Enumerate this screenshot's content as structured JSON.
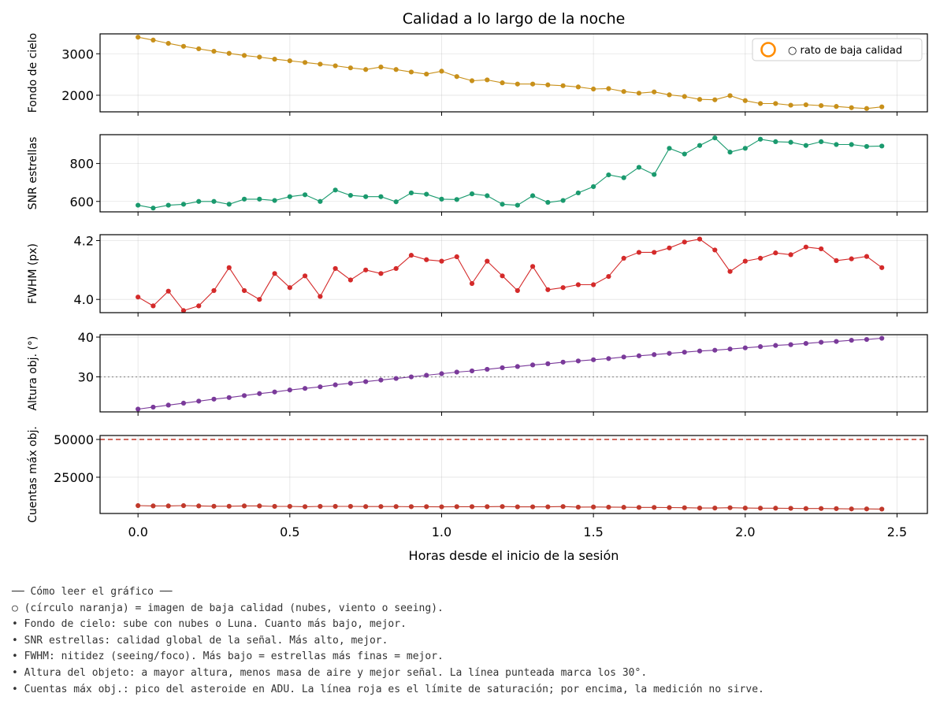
{
  "chart_data": {
    "type": "line",
    "title": "Calidad a lo largo de la noche",
    "xlabel": "Horas desde el inicio de la sesión",
    "x": [
      0.0,
      0.05,
      0.1,
      0.15,
      0.2,
      0.25,
      0.3,
      0.35,
      0.4,
      0.45,
      0.5,
      0.55,
      0.6,
      0.65,
      0.7,
      0.75,
      0.8,
      0.85,
      0.9,
      0.95,
      1.0,
      1.05,
      1.1,
      1.15,
      1.2,
      1.25,
      1.3,
      1.35,
      1.4,
      1.45,
      1.5,
      1.55,
      1.6,
      1.65,
      1.7,
      1.75,
      1.8,
      1.85,
      1.9,
      1.95,
      2.0,
      2.05,
      2.1,
      2.15,
      2.2,
      2.25,
      2.3,
      2.35,
      2.4,
      2.45
    ],
    "xlim": [
      -0.125,
      2.6
    ],
    "xticks": [
      "0.0",
      "0.5",
      "1.0",
      "1.5",
      "2.0",
      "2.5"
    ],
    "xtick_values": [
      0.0,
      0.5,
      1.0,
      1.5,
      2.0,
      2.5
    ],
    "legend": {
      "placement": "upper-right",
      "label": "○ rato de baja calidad",
      "marker_color": "#ff8c00"
    },
    "panels": [
      {
        "ylabel": "Fondo de cielo",
        "color": "#c8901a",
        "ylim": [
          1600,
          3480
        ],
        "yticks": [
          "2000",
          "3000"
        ],
        "ytick_values": [
          2000,
          3000
        ],
        "values": [
          3400,
          3330,
          3250,
          3180,
          3120,
          3060,
          3010,
          2960,
          2920,
          2870,
          2830,
          2790,
          2750,
          2710,
          2660,
          2620,
          2680,
          2620,
          2560,
          2510,
          2580,
          2450,
          2350,
          2370,
          2300,
          2270,
          2270,
          2250,
          2230,
          2200,
          2150,
          2160,
          2090,
          2050,
          2080,
          2010,
          1970,
          1900,
          1890,
          1990,
          1870,
          1800,
          1800,
          1760,
          1770,
          1750,
          1730,
          1700,
          1680,
          1720
        ]
      },
      {
        "ylabel": "SNR estrellas",
        "color": "#1a9a6e",
        "ylim": [
          545,
          952
        ],
        "yticks": [
          "600",
          "800"
        ],
        "ytick_values": [
          600,
          800
        ],
        "values": [
          580,
          565,
          580,
          585,
          600,
          600,
          585,
          612,
          612,
          605,
          625,
          635,
          600,
          660,
          632,
          625,
          625,
          598,
          645,
          638,
          612,
          610,
          640,
          630,
          585,
          580,
          630,
          595,
          605,
          645,
          678,
          740,
          725,
          780,
          742,
          880,
          850,
          895,
          935,
          860,
          880,
          928,
          915,
          912,
          895,
          915,
          900,
          900,
          890,
          892
        ]
      },
      {
        "ylabel": "FWHM (px)",
        "color": "#d42a2a",
        "ylim": [
          3.955,
          4.22
        ],
        "yticks": [
          "4.0",
          "4.2"
        ],
        "ytick_values": [
          4.0,
          4.2
        ],
        "values": [
          4.008,
          3.978,
          4.028,
          3.962,
          3.978,
          4.03,
          4.108,
          4.03,
          4.0,
          4.088,
          4.04,
          4.08,
          4.01,
          4.105,
          4.066,
          4.1,
          4.088,
          4.105,
          4.15,
          4.135,
          4.13,
          4.145,
          4.054,
          4.13,
          4.08,
          4.03,
          4.112,
          4.033,
          4.04,
          4.05,
          4.05,
          4.078,
          4.14,
          4.16,
          4.16,
          4.175,
          4.195,
          4.205,
          4.168,
          4.095,
          4.13,
          4.14,
          4.158,
          4.152,
          4.178,
          4.172,
          4.132,
          4.138,
          4.146,
          4.108
        ]
      },
      {
        "ylabel": "Altura obj. (°)",
        "color": "#7a3a9a",
        "ylim": [
          21.2,
          40.6
        ],
        "yticks": [
          "30",
          "40"
        ],
        "ytick_values": [
          30,
          40
        ],
        "hline": {
          "value": 30,
          "style": "dotted",
          "color": "#8a8a8a"
        },
        "values": [
          21.9,
          22.4,
          22.9,
          23.4,
          23.9,
          24.4,
          24.8,
          25.3,
          25.8,
          26.2,
          26.7,
          27.1,
          27.5,
          28.0,
          28.4,
          28.8,
          29.2,
          29.6,
          30.0,
          30.4,
          30.8,
          31.2,
          31.5,
          31.9,
          32.3,
          32.6,
          33.0,
          33.3,
          33.7,
          34.0,
          34.3,
          34.6,
          35.0,
          35.3,
          35.6,
          35.9,
          36.2,
          36.5,
          36.7,
          37.0,
          37.3,
          37.6,
          37.9,
          38.1,
          38.4,
          38.7,
          38.9,
          39.2,
          39.4,
          39.7
        ]
      },
      {
        "ylabel": "Cuentas máx obj.",
        "color": "#c0392b",
        "ylim": [
          1000,
          52600
        ],
        "yticks": [
          "25000",
          "50000"
        ],
        "ytick_values": [
          25000,
          50000
        ],
        "hline": {
          "value": 50000,
          "style": "dashed",
          "color": "#c0392b"
        },
        "values": [
          6200,
          6000,
          6000,
          6200,
          6000,
          5800,
          5800,
          6000,
          6000,
          5700,
          5700,
          5500,
          5700,
          5700,
          5700,
          5600,
          5600,
          5600,
          5500,
          5500,
          5400,
          5500,
          5500,
          5500,
          5600,
          5400,
          5400,
          5400,
          5600,
          5200,
          5300,
          5200,
          5100,
          5000,
          5000,
          4900,
          4800,
          4600,
          4600,
          4800,
          4600,
          4500,
          4500,
          4400,
          4300,
          4300,
          4200,
          4000,
          4000,
          3900
        ]
      }
    ]
  },
  "notes": {
    "heading": "── Cómo leer el gráfico ──",
    "lines": [
      "○ (círculo naranja) = imagen de baja calidad (nubes, viento o seeing).",
      "• Fondo de cielo: sube con nubes o Luna. Cuanto más bajo, mejor.",
      "• SNR estrellas: calidad global de la señal. Más alto, mejor.",
      "• FWHM: nitidez (seeing/foco). Más bajo = estrellas más finas = mejor.",
      "• Altura del objeto: a mayor altura, menos masa de aire y mejor señal. La línea punteada marca los 30°.",
      "• Cuentas máx obj.: pico del asteroide en ADU. La línea roja es el límite de saturación; por encima, la medición no sirve."
    ]
  }
}
